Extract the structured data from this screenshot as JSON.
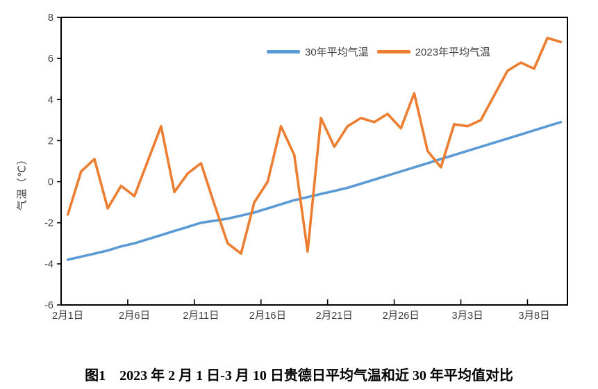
{
  "caption": "图1　2023 年 2 月 1 日-3 月 10 日贵德日平均气温和近 30 年平均值对比",
  "colors": {
    "series_30yr": "#5B9BD5",
    "series_2023": "#ED7D31",
    "axis": "#000000",
    "tick_text": "#3f3f3f"
  },
  "chart_data": {
    "type": "line",
    "title": "",
    "xlabel": "",
    "ylabel": "气温（℃）",
    "ylim": [
      -6,
      8
    ],
    "ytick_step": 2,
    "grid": false,
    "legend_position": "top-inside",
    "categories": [
      "2月1日",
      "2月2日",
      "2月3日",
      "2月4日",
      "2月5日",
      "2月6日",
      "2月7日",
      "2月8日",
      "2月9日",
      "2月10日",
      "2月11日",
      "2月12日",
      "2月13日",
      "2月14日",
      "2月15日",
      "2月16日",
      "2月17日",
      "2月18日",
      "2月19日",
      "2月20日",
      "2月21日",
      "2月22日",
      "2月23日",
      "2月24日",
      "2月25日",
      "2月26日",
      "2月27日",
      "2月28日",
      "3月1日",
      "3月2日",
      "3月3日",
      "3月4日",
      "3月5日",
      "3月6日",
      "3月7日",
      "3月8日",
      "3月9日",
      "3月10日"
    ],
    "xtick_indices": [
      0,
      5,
      10,
      15,
      20,
      25,
      30,
      35
    ],
    "xtick_labels": [
      "2月1日",
      "2月6日",
      "2月11日",
      "2月16日",
      "2月21日",
      "2月26日",
      "3月3日",
      "3月8日"
    ],
    "series": [
      {
        "name": "30年平均气温",
        "color": "#5B9BD5",
        "values": [
          -3.8,
          -3.65,
          -3.5,
          -3.35,
          -3.15,
          -3.0,
          -2.8,
          -2.6,
          -2.4,
          -2.2,
          -2.0,
          -1.9,
          -1.8,
          -1.65,
          -1.5,
          -1.3,
          -1.1,
          -0.9,
          -0.75,
          -0.6,
          -0.45,
          -0.3,
          -0.1,
          0.1,
          0.3,
          0.5,
          0.7,
          0.9,
          1.1,
          1.3,
          1.5,
          1.7,
          1.9,
          2.1,
          2.3,
          2.5,
          2.7,
          2.9
        ]
      },
      {
        "name": "2023年平均气温",
        "color": "#ED7D31",
        "values": [
          -1.6,
          0.5,
          1.1,
          -1.3,
          -0.2,
          -0.7,
          1.0,
          2.7,
          -0.5,
          0.4,
          0.9,
          -1.1,
          -3.0,
          -3.5,
          -1.0,
          0.0,
          2.7,
          1.3,
          -3.4,
          3.1,
          1.7,
          2.7,
          3.1,
          2.9,
          3.3,
          2.6,
          4.3,
          1.5,
          0.7,
          2.8,
          2.7,
          3.0,
          4.2,
          5.4,
          5.8,
          5.5,
          7.0,
          6.8
        ]
      }
    ],
    "yticks": [
      8,
      6,
      4,
      2,
      0,
      -2,
      -4,
      -6
    ]
  }
}
